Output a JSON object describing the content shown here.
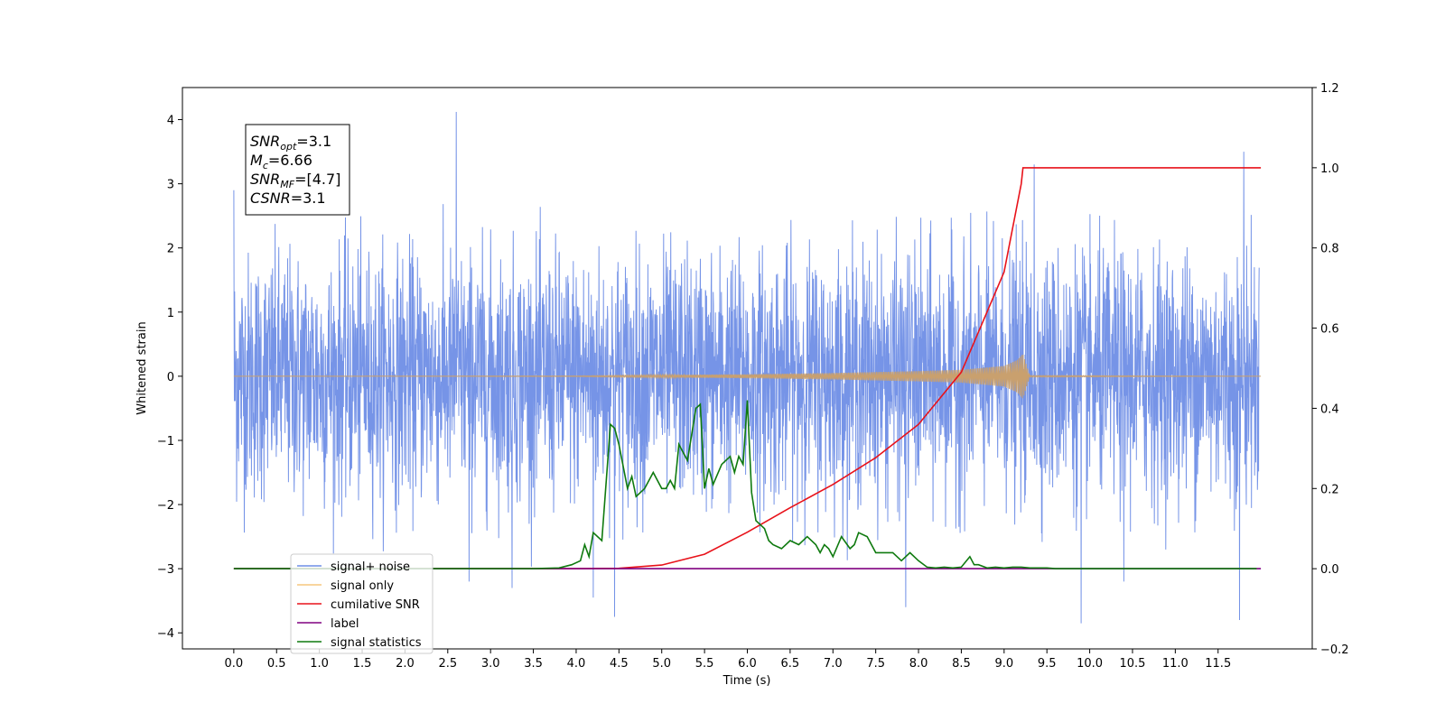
{
  "chart_data": {
    "type": "line",
    "title": "",
    "xlabel": "Time (s)",
    "ylabel": "Whitened strain",
    "xlim": [
      -0.6,
      12.6
    ],
    "ylim": [
      -4.25,
      4.5
    ],
    "ylim_right": [
      -0.2,
      1.2
    ],
    "x_ticks": [
      0.0,
      0.5,
      1.0,
      1.5,
      2.0,
      2.5,
      3.0,
      3.5,
      4.0,
      4.5,
      5.0,
      5.5,
      6.0,
      6.5,
      7.0,
      7.5,
      8.0,
      8.5,
      9.0,
      9.5,
      10.0,
      10.5,
      11.0,
      11.5
    ],
    "x_tick_labels": [
      "0.0",
      "0.5",
      "1.0",
      "1.5",
      "2.0",
      "2.5",
      "3.0",
      "3.5",
      "4.0",
      "4.5",
      "5.0",
      "5.5",
      "6.0",
      "6.5",
      "7.0",
      "7.5",
      "8.0",
      "8.5",
      "9.0",
      "9.5",
      "10.0",
      "10.5",
      "11.0",
      "11.5"
    ],
    "y_ticks": [
      4,
      3,
      2,
      1,
      0,
      -1,
      -2,
      -3,
      -4
    ],
    "y_tick_labels": [
      "4",
      "3",
      "2",
      "1",
      "0",
      "−1",
      "−2",
      "−3",
      "−4"
    ],
    "y_right_ticks": [
      1.2,
      1.0,
      0.8,
      0.6,
      0.4,
      0.2,
      0.0,
      -0.2
    ],
    "y_right_tick_labels": [
      "1.2",
      "1.0",
      "0.8",
      "0.6",
      "0.4",
      "0.2",
      "0.0",
      "−0.2"
    ],
    "grid": false,
    "legend_position": "lower-left",
    "annotation": {
      "lines": [
        {
          "base": "SNR",
          "sub": "opt",
          "rest": "=3.1"
        },
        {
          "base": "M",
          "sub": "c",
          "rest": "=6.66"
        },
        {
          "base": "SNR",
          "sub": "MF",
          "rest": "=[4.7]"
        },
        {
          "base": "CSNR",
          "sub": "",
          "rest": "=3.1"
        }
      ]
    },
    "series": [
      {
        "name": "signal+ noise",
        "axis": "left",
        "color": "#6f8ee6",
        "kind": "noise",
        "x_range": [
          0.0,
          11.98
        ],
        "envelope_low": -2.0,
        "envelope_high": 2.0,
        "spikes": [
          {
            "x": 0.0,
            "y": 2.9
          },
          {
            "x": 2.6,
            "y": 4.12
          },
          {
            "x": 4.45,
            "y": -3.75
          },
          {
            "x": 7.85,
            "y": -3.6
          },
          {
            "x": 9.9,
            "y": -3.85
          },
          {
            "x": 11.75,
            "y": -3.8
          },
          {
            "x": 11.8,
            "y": 3.5
          },
          {
            "x": 9.35,
            "y": 3.3
          },
          {
            "x": 3.25,
            "y": -3.3
          },
          {
            "x": 4.2,
            "y": -3.45
          },
          {
            "x": 2.75,
            "y": -3.2
          },
          {
            "x": 10.4,
            "y": -3.2
          }
        ]
      },
      {
        "name": "signal only",
        "axis": "left",
        "color": "#f5c77e",
        "kind": "chirp",
        "x": [
          0.0,
          4.0,
          5.0,
          6.0,
          7.0,
          8.0,
          8.5,
          9.0,
          9.15,
          9.22,
          9.3,
          9.6,
          12.0
        ],
        "amplitude": [
          0.0,
          0.005,
          0.02,
          0.03,
          0.05,
          0.08,
          0.1,
          0.16,
          0.25,
          0.35,
          0.01,
          0.01,
          0.0
        ]
      },
      {
        "name": "cumilative SNR",
        "axis": "right",
        "color": "#e8121a",
        "x": [
          0.0,
          4.0,
          4.5,
          5.0,
          5.5,
          6.0,
          6.5,
          7.0,
          7.5,
          8.0,
          8.5,
          9.0,
          9.2,
          9.22,
          12.0
        ],
        "y": [
          0.0,
          0.0,
          0.001,
          0.009,
          0.036,
          0.091,
          0.152,
          0.21,
          0.277,
          0.36,
          0.49,
          0.74,
          0.96,
          1.0,
          1.0
        ]
      },
      {
        "name": "label",
        "axis": "right",
        "color": "#800080",
        "x": [
          0.0,
          12.0
        ],
        "y": [
          0.0,
          0.0
        ]
      },
      {
        "name": "signal statistics",
        "axis": "right",
        "color": "#0f7a0f",
        "x": [
          0.0,
          3.5,
          3.8,
          3.95,
          4.05,
          4.1,
          4.15,
          4.2,
          4.3,
          4.4,
          4.45,
          4.5,
          4.6,
          4.65,
          4.7,
          4.8,
          4.9,
          5.0,
          5.05,
          5.1,
          5.15,
          5.2,
          5.25,
          5.3,
          5.4,
          5.45,
          5.5,
          5.55,
          5.6,
          5.7,
          5.8,
          5.85,
          5.9,
          5.95,
          6.0,
          6.05,
          6.1,
          6.2,
          6.25,
          6.3,
          6.4,
          6.5,
          6.6,
          6.7,
          6.8,
          6.85,
          6.9,
          6.95,
          7.0,
          7.1,
          7.2,
          7.25,
          7.3,
          7.4,
          7.5,
          7.6,
          7.7,
          7.8,
          7.9,
          8.0,
          8.1,
          8.2,
          8.3,
          8.4,
          8.5,
          8.6,
          8.65,
          8.7,
          8.8,
          8.9,
          9.0,
          9.1,
          9.2,
          9.3,
          9.4,
          9.5,
          9.6,
          10.0,
          11.0,
          11.95
        ],
        "y": [
          0.0,
          0.0,
          0.002,
          0.01,
          0.02,
          0.06,
          0.03,
          0.09,
          0.07,
          0.36,
          0.35,
          0.31,
          0.2,
          0.23,
          0.18,
          0.2,
          0.24,
          0.2,
          0.2,
          0.22,
          0.2,
          0.31,
          0.29,
          0.27,
          0.4,
          0.41,
          0.2,
          0.25,
          0.21,
          0.26,
          0.28,
          0.24,
          0.28,
          0.26,
          0.42,
          0.19,
          0.12,
          0.1,
          0.07,
          0.06,
          0.05,
          0.07,
          0.06,
          0.08,
          0.06,
          0.04,
          0.06,
          0.05,
          0.03,
          0.08,
          0.05,
          0.06,
          0.09,
          0.08,
          0.04,
          0.04,
          0.04,
          0.02,
          0.04,
          0.02,
          0.004,
          0.002,
          0.004,
          0.002,
          0.004,
          0.03,
          0.01,
          0.01,
          0.002,
          0.004,
          0.002,
          0.004,
          0.004,
          0.002,
          0.002,
          0.002,
          0.0,
          0.0,
          0.0,
          0.0
        ]
      }
    ]
  }
}
